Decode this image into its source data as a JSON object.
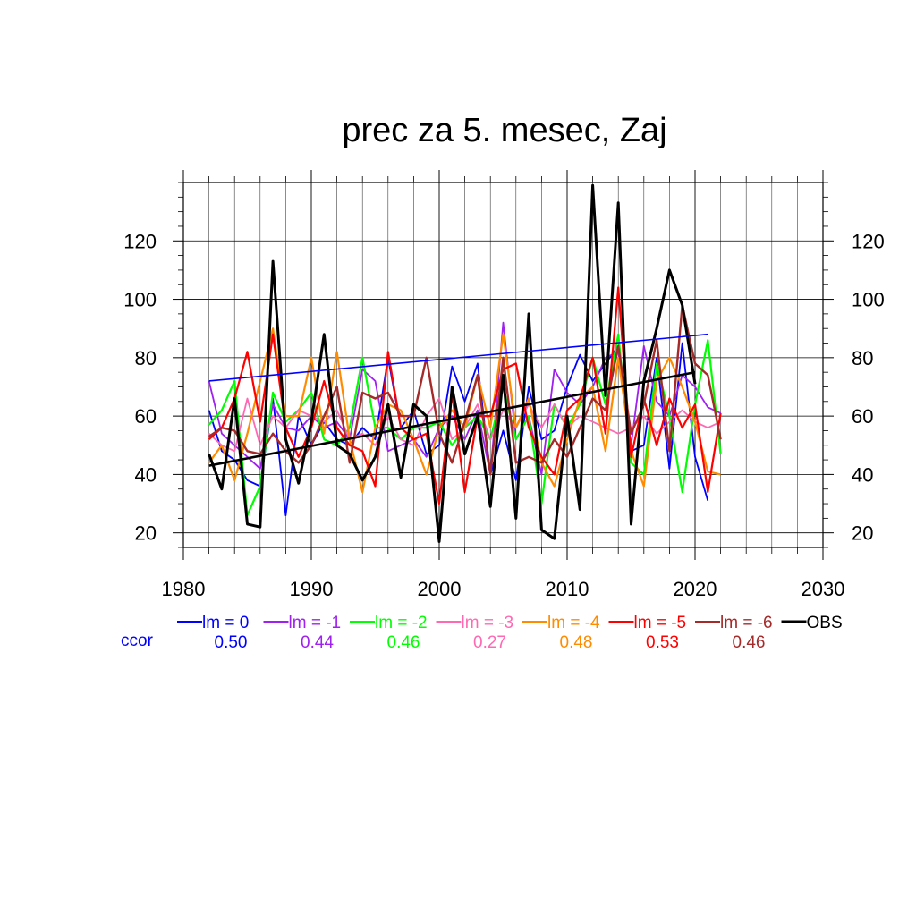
{
  "chart_data": {
    "type": "line",
    "title": "prec za 5. mesec, Zaj",
    "xlabel": "",
    "ylabel": "",
    "xlim": [
      1980,
      2030
    ],
    "ylim": [
      15,
      140
    ],
    "x_ticks": [
      1980,
      1990,
      2000,
      2010,
      2020,
      2030
    ],
    "y_ticks": [
      20,
      40,
      60,
      80,
      100,
      120
    ],
    "grid": true,
    "legend_position": "bottom",
    "ccor_label": "ccor",
    "x": [
      1982,
      1983,
      1984,
      1985,
      1986,
      1987,
      1988,
      1989,
      1990,
      1991,
      1992,
      1993,
      1994,
      1995,
      1996,
      1997,
      1998,
      1999,
      2000,
      2001,
      2002,
      2003,
      2004,
      2005,
      2006,
      2007,
      2008,
      2009,
      2010,
      2011,
      2012,
      2013,
      2014,
      2015,
      2016,
      2017,
      2018,
      2019,
      2020,
      2021,
      2022
    ],
    "series": [
      {
        "name": "lm = 0",
        "ccor": "0.50",
        "color": "#0000ff",
        "width": 1.8,
        "values": [
          62,
          48,
          45,
          38,
          36,
          66,
          26,
          60,
          50,
          58,
          52,
          50,
          56,
          52,
          80,
          56,
          62,
          47,
          50,
          77,
          65,
          78,
          40,
          55,
          38,
          70,
          52,
          55,
          70,
          81,
          72,
          78,
          84,
          48,
          50,
          80,
          42,
          85,
          46,
          31,
          null
        ],
        "trend": [
          72,
          88
        ]
      },
      {
        "name": "lm = -1",
        "ccor": "0.44",
        "color": "#a020f0",
        "width": 1.8,
        "values": [
          72,
          54,
          50,
          46,
          42,
          64,
          56,
          55,
          60,
          56,
          58,
          52,
          76,
          72,
          48,
          50,
          52,
          46,
          56,
          60,
          52,
          62,
          40,
          92,
          52,
          60,
          40,
          76,
          68,
          64,
          70,
          80,
          82,
          50,
          84,
          65,
          60,
          74,
          70,
          63,
          61
        ],
        "trend": null
      },
      {
        "name": "lm = -2",
        "ccor": "0.46",
        "color": "#00ff00",
        "width": 2.2,
        "values": [
          57,
          62,
          72,
          26,
          36,
          68,
          58,
          62,
          68,
          52,
          50,
          56,
          80,
          56,
          56,
          52,
          56,
          56,
          58,
          50,
          56,
          60,
          52,
          70,
          52,
          60,
          30,
          64,
          56,
          64,
          80,
          64,
          88,
          44,
          40,
          78,
          60,
          34,
          64,
          86,
          47
        ],
        "trend": null
      },
      {
        "name": "lm = -3",
        "ccor": "0.27",
        "color": "#ff69b4",
        "width": 1.8,
        "values": [
          54,
          50,
          48,
          66,
          50,
          60,
          56,
          62,
          60,
          58,
          62,
          52,
          54,
          50,
          60,
          52,
          50,
          60,
          66,
          52,
          56,
          64,
          52,
          62,
          56,
          64,
          56,
          64,
          56,
          60,
          58,
          56,
          54,
          56,
          60,
          54,
          58,
          62,
          58,
          56,
          58
        ],
        "trend": null
      },
      {
        "name": "lm = -4",
        "ccor": "0.48",
        "color": "#ff8c00",
        "width": 2.2,
        "values": [
          44,
          50,
          38,
          54,
          72,
          90,
          60,
          60,
          80,
          54,
          82,
          52,
          34,
          56,
          64,
          62,
          52,
          40,
          56,
          62,
          56,
          74,
          56,
          88,
          56,
          66,
          44,
          36,
          52,
          66,
          70,
          48,
          80,
          48,
          36,
          72,
          80,
          70,
          58,
          41,
          40
        ],
        "trend": null
      },
      {
        "name": "lm = -5",
        "ccor": "0.53",
        "color": "#ff0000",
        "width": 2.2,
        "values": [
          52,
          56,
          66,
          82,
          58,
          88,
          56,
          46,
          56,
          72,
          56,
          50,
          48,
          36,
          82,
          56,
          52,
          54,
          30,
          68,
          34,
          60,
          60,
          76,
          78,
          56,
          46,
          40,
          62,
          66,
          80,
          54,
          104,
          46,
          66,
          50,
          66,
          56,
          64,
          34,
          61
        ],
        "trend": null
      },
      {
        "name": "lm = -6",
        "ccor": "0.46",
        "color": "#a52a2a",
        "width": 2.4,
        "values": [
          53,
          56,
          55,
          48,
          47,
          54,
          48,
          44,
          50,
          60,
          70,
          44,
          68,
          66,
          68,
          60,
          60,
          80,
          54,
          44,
          58,
          74,
          40,
          80,
          44,
          46,
          44,
          52,
          46,
          56,
          66,
          62,
          84,
          54,
          64,
          86,
          48,
          98,
          78,
          74,
          52
        ],
        "trend": null
      },
      {
        "name": "OBS",
        "ccor": "",
        "color": "#000000",
        "width": 3.0,
        "values": [
          47,
          35,
          66,
          23,
          22,
          113,
          52,
          37,
          58,
          88,
          50,
          47,
          38,
          46,
          64,
          39,
          64,
          60,
          17,
          70,
          47,
          60,
          29,
          74,
          25,
          95,
          21,
          18,
          60,
          28,
          139,
          67,
          133,
          23,
          72,
          90,
          110,
          98,
          71,
          null,
          null
        ],
        "trend": [
          43,
          75
        ]
      }
    ]
  }
}
